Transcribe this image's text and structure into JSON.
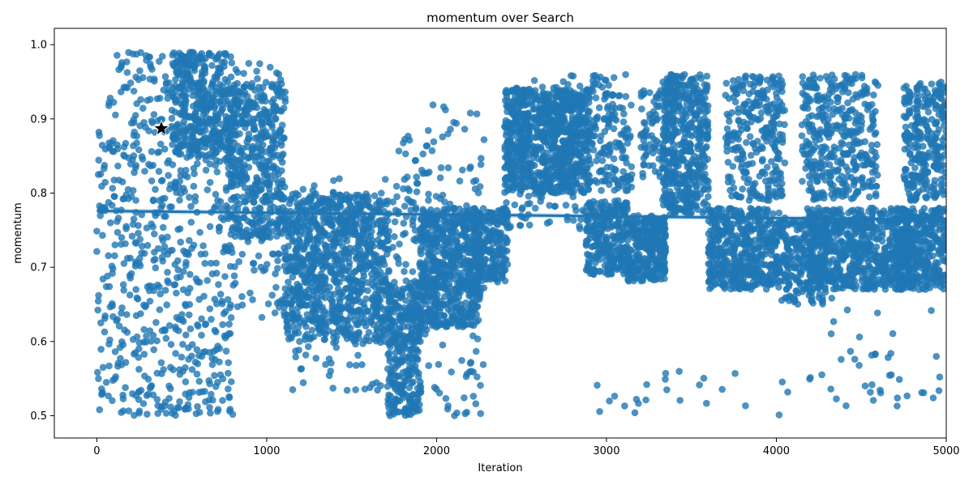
{
  "chart_data": {
    "type": "scatter",
    "title": "momentum over Search",
    "xlabel": "Iteration",
    "ylabel": "momentum",
    "xlim": [
      -250,
      5000
    ],
    "ylim": [
      0.47,
      1.022
    ],
    "x_ticks": [
      0,
      1000,
      2000,
      3000,
      4000,
      5000
    ],
    "x_tick_labels": [
      "0",
      "1000",
      "2000",
      "3000",
      "4000",
      "5000"
    ],
    "y_ticks": [
      0.5,
      0.6,
      0.7,
      0.8,
      0.9,
      1.0
    ],
    "y_tick_labels": [
      "0.5",
      "0.6",
      "0.7",
      "0.8",
      "0.9",
      "1.0"
    ],
    "grid": false,
    "legend": "none",
    "colors": {
      "points": "#1f77b4",
      "regression": "#1f77b4",
      "best_marker": "#000000"
    },
    "regression_line": {
      "x": [
        0,
        5000
      ],
      "y": [
        0.776,
        0.764
      ]
    },
    "best_point": {
      "x": 380,
      "y": 0.887,
      "marker": "star"
    },
    "clusters": [
      {
        "x_range": [
          0,
          800
        ],
        "y_range": [
          0.5,
          0.99
        ],
        "count": 700
      },
      {
        "x_range": [
          440,
          760
        ],
        "y_range": [
          0.85,
          0.99
        ],
        "count": 300
      },
      {
        "x_range": [
          760,
          1110
        ],
        "y_range": [
          0.74,
          0.95
        ],
        "count": 420
      },
      {
        "x_range": [
          780,
          1110
        ],
        "y_range": [
          0.63,
          0.99
        ],
        "count": 120
      },
      {
        "x_range": [
          1100,
          1720
        ],
        "y_range": [
          0.6,
          0.8
        ],
        "count": 850
      },
      {
        "x_range": [
          1150,
          1700
        ],
        "y_range": [
          0.53,
          0.82
        ],
        "count": 150
      },
      {
        "x_range": [
          1710,
          1910
        ],
        "y_range": [
          0.5,
          0.68
        ],
        "count": 320
      },
      {
        "x_range": [
          1740,
          1950
        ],
        "y_range": [
          0.6,
          0.88
        ],
        "count": 100
      },
      {
        "x_range": [
          1900,
          2260
        ],
        "y_range": [
          0.62,
          0.78
        ],
        "count": 600
      },
      {
        "x_range": [
          1950,
          2280
        ],
        "y_range": [
          0.5,
          0.92
        ],
        "count": 120
      },
      {
        "x_range": [
          2220,
          2420
        ],
        "y_range": [
          0.68,
          0.78
        ],
        "count": 220
      },
      {
        "x_range": [
          2400,
          2900
        ],
        "y_range": [
          0.8,
          0.94
        ],
        "count": 800
      },
      {
        "x_range": [
          2400,
          2900
        ],
        "y_range": [
          0.75,
          0.96
        ],
        "count": 150
      },
      {
        "x_range": [
          2880,
          3130
        ],
        "y_range": [
          0.69,
          0.79
        ],
        "count": 280
      },
      {
        "x_range": [
          2900,
          3150
        ],
        "y_range": [
          0.8,
          0.96
        ],
        "count": 150
      },
      {
        "x_range": [
          3120,
          3350
        ],
        "y_range": [
          0.68,
          0.77
        ],
        "count": 300
      },
      {
        "x_range": [
          3200,
          3400
        ],
        "y_range": [
          0.82,
          0.94
        ],
        "count": 100
      },
      {
        "x_range": [
          3330,
          3600
        ],
        "y_range": [
          0.77,
          0.96
        ],
        "count": 450
      },
      {
        "x_range": [
          3600,
          4020
        ],
        "y_range": [
          0.67,
          0.78
        ],
        "count": 500
      },
      {
        "x_range": [
          3700,
          4050
        ],
        "y_range": [
          0.79,
          0.96
        ],
        "count": 280
      },
      {
        "x_range": [
          4020,
          4300
        ],
        "y_range": [
          0.65,
          0.77
        ],
        "count": 260
      },
      {
        "x_range": [
          4150,
          4600
        ],
        "y_range": [
          0.79,
          0.96
        ],
        "count": 380
      },
      {
        "x_range": [
          4180,
          4800
        ],
        "y_range": [
          0.67,
          0.78
        ],
        "count": 700
      },
      {
        "x_range": [
          4750,
          5000
        ],
        "y_range": [
          0.79,
          0.95
        ],
        "count": 280
      },
      {
        "x_range": [
          4700,
          5000
        ],
        "y_range": [
          0.67,
          0.78
        ],
        "count": 350
      },
      {
        "x_range": [
          2800,
          5000
        ],
        "y_range": [
          0.5,
          0.56
        ],
        "count": 35
      },
      {
        "x_range": [
          4200,
          5000
        ],
        "y_range": [
          0.52,
          0.66
        ],
        "count": 30
      }
    ]
  }
}
